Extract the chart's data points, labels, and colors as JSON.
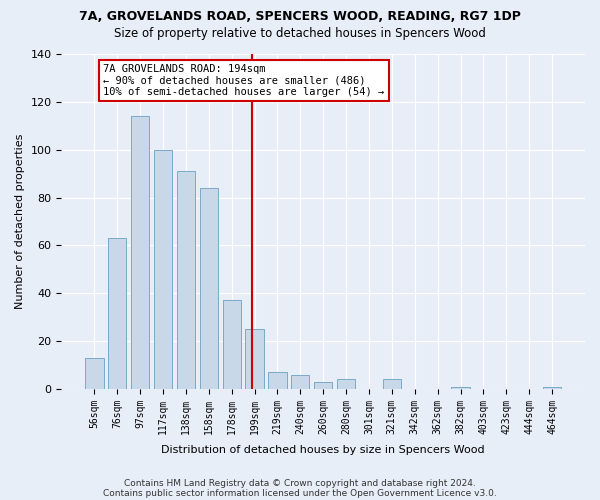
{
  "title_line1": "7A, GROVELANDS ROAD, SPENCERS WOOD, READING, RG7 1DP",
  "title_line2": "Size of property relative to detached houses in Spencers Wood",
  "xlabel": "Distribution of detached houses by size in Spencers Wood",
  "ylabel": "Number of detached properties",
  "footnote1": "Contains HM Land Registry data © Crown copyright and database right 2024.",
  "footnote2": "Contains public sector information licensed under the Open Government Licence v3.0.",
  "bar_labels": [
    "56sqm",
    "76sqm",
    "97sqm",
    "117sqm",
    "138sqm",
    "158sqm",
    "178sqm",
    "199sqm",
    "219sqm",
    "240sqm",
    "260sqm",
    "280sqm",
    "301sqm",
    "321sqm",
    "342sqm",
    "362sqm",
    "382sqm",
    "403sqm",
    "423sqm",
    "444sqm",
    "464sqm"
  ],
  "bar_values": [
    13,
    63,
    114,
    100,
    91,
    84,
    37,
    25,
    7,
    6,
    3,
    4,
    0,
    4,
    0,
    0,
    1,
    0,
    0,
    0,
    1
  ],
  "bar_color": "#c8d8e8",
  "bar_edge_color": "#7aaac8",
  "property_size_label": "7A GROVELANDS ROAD: 194sqm",
  "annotation_line2": "← 90% of detached houses are smaller (486)",
  "annotation_line3": "10% of semi-detached houses are larger (54) →",
  "vline_color": "#cc0000",
  "vline_bin_index": 7,
  "annotation_box_color": "#cc0000",
  "background_color": "#e8eef8",
  "plot_bg_color": "#e8eef8",
  "ylim": [
    0,
    140
  ],
  "yticks": [
    0,
    20,
    40,
    60,
    80,
    100,
    120,
    140
  ]
}
